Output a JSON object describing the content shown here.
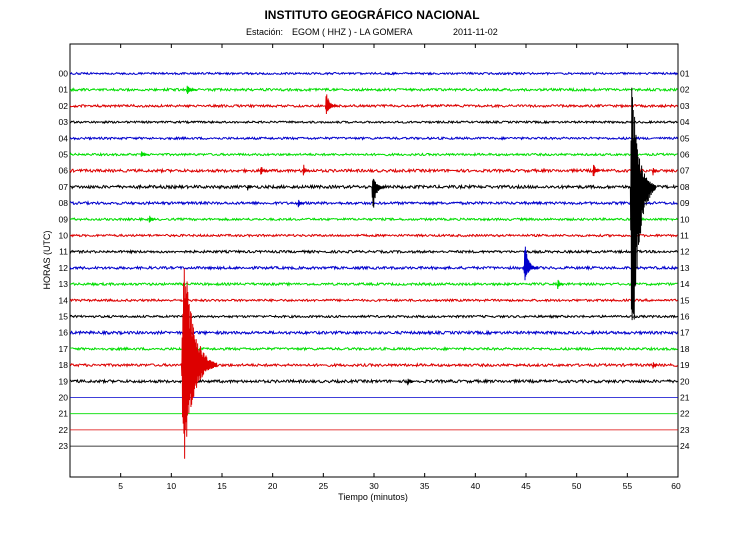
{
  "header": {
    "title": "INSTITUTO GEOGRÁFICO NACIONAL",
    "station_label": "Estación:",
    "station_value": "EGOM ( HHZ ) - LA GOMERA",
    "date": "2011-11-02"
  },
  "chart_data": {
    "type": "line",
    "title": "INSTITUTO GEOGRÁFICO NACIONAL",
    "subtitle": "Estación:  EGOM ( HHZ ) - LA GOMERA",
    "date": "2011-11-02",
    "xlabel": "Tiempo (minutos)",
    "ylabel": "HORAS (UTC)",
    "xlim": [
      0,
      60
    ],
    "x_ticks": [
      5,
      10,
      15,
      20,
      25,
      30,
      35,
      40,
      45,
      50,
      55,
      60
    ],
    "grid": false,
    "legend": "none",
    "colors": [
      "#0000cc",
      "#00dd00",
      "#dd0000",
      "#000000"
    ],
    "left_labels": [
      "00",
      "01",
      "02",
      "03",
      "04",
      "05",
      "06",
      "07",
      "08",
      "09",
      "10",
      "11",
      "12",
      "13",
      "14",
      "15",
      "16",
      "17",
      "18",
      "19",
      "20",
      "21",
      "22",
      "23"
    ],
    "right_labels": [
      "01",
      "02",
      "03",
      "04",
      "05",
      "06",
      "07",
      "08",
      "09",
      "10",
      "11",
      "12",
      "13",
      "14",
      "15",
      "16",
      "17",
      "18",
      "19",
      "20",
      "21",
      "22",
      "23",
      "24"
    ],
    "rows": [
      {
        "hour": "00",
        "color": "#0000cc",
        "noise": 1.0,
        "recorded_until_min": 60
      },
      {
        "hour": "01",
        "color": "#00dd00",
        "noise": 1.2,
        "recorded_until_min": 60
      },
      {
        "hour": "02",
        "color": "#dd0000",
        "noise": 1.2,
        "recorded_until_min": 60
      },
      {
        "hour": "03",
        "color": "#000000",
        "noise": 1.0,
        "recorded_until_min": 60
      },
      {
        "hour": "04",
        "color": "#0000cc",
        "noise": 1.1,
        "recorded_until_min": 60
      },
      {
        "hour": "05",
        "color": "#00dd00",
        "noise": 1.1,
        "recorded_until_min": 60
      },
      {
        "hour": "06",
        "color": "#dd0000",
        "noise": 1.4,
        "recorded_until_min": 60
      },
      {
        "hour": "07",
        "color": "#000000",
        "noise": 1.5,
        "recorded_until_min": 60
      },
      {
        "hour": "08",
        "color": "#0000cc",
        "noise": 1.3,
        "recorded_until_min": 60
      },
      {
        "hour": "09",
        "color": "#00dd00",
        "noise": 1.1,
        "recorded_until_min": 60
      },
      {
        "hour": "10",
        "color": "#dd0000",
        "noise": 1.1,
        "recorded_until_min": 60
      },
      {
        "hour": "11",
        "color": "#000000",
        "noise": 1.2,
        "recorded_until_min": 60
      },
      {
        "hour": "12",
        "color": "#0000cc",
        "noise": 1.3,
        "recorded_until_min": 60
      },
      {
        "hour": "13",
        "color": "#00dd00",
        "noise": 1.2,
        "recorded_until_min": 60
      },
      {
        "hour": "14",
        "color": "#dd0000",
        "noise": 1.1,
        "recorded_until_min": 60
      },
      {
        "hour": "15",
        "color": "#000000",
        "noise": 1.1,
        "recorded_until_min": 60
      },
      {
        "hour": "16",
        "color": "#0000cc",
        "noise": 1.4,
        "recorded_until_min": 60
      },
      {
        "hour": "17",
        "color": "#00dd00",
        "noise": 1.2,
        "recorded_until_min": 60
      },
      {
        "hour": "18",
        "color": "#dd0000",
        "noise": 1.3,
        "recorded_until_min": 60
      },
      {
        "hour": "19",
        "color": "#000000",
        "noise": 1.4,
        "recorded_until_min": 60
      },
      {
        "hour": "20",
        "color": "#0000cc",
        "noise": 0,
        "recorded_until_min": 0
      },
      {
        "hour": "21",
        "color": "#00dd00",
        "noise": 0,
        "recorded_until_min": 0
      },
      {
        "hour": "22",
        "color": "#dd0000",
        "noise": 0,
        "recorded_until_min": 0
      },
      {
        "hour": "23",
        "color": "#000000",
        "noise": 0,
        "recorded_until_min": 0
      }
    ],
    "events": [
      {
        "hour": "01",
        "minute": 11.5,
        "amplitude_up": 6,
        "amplitude_down": 6,
        "duration_min": 1.0
      },
      {
        "hour": "02",
        "minute": 25.2,
        "amplitude_up": 16,
        "amplitude_down": 12,
        "duration_min": 1.2
      },
      {
        "hour": "05",
        "minute": 7.0,
        "amplitude_up": 4,
        "amplitude_down": 4,
        "duration_min": 0.8
      },
      {
        "hour": "06",
        "minute": 18.8,
        "amplitude_up": 8,
        "amplitude_down": 6,
        "duration_min": 0.6
      },
      {
        "hour": "06",
        "minute": 23.0,
        "amplitude_up": 8,
        "amplitude_down": 6,
        "duration_min": 0.6
      },
      {
        "hour": "06",
        "minute": 51.6,
        "amplitude_up": 10,
        "amplitude_down": 8,
        "duration_min": 0.7
      },
      {
        "hour": "06",
        "minute": 57.5,
        "amplitude_up": 6,
        "amplitude_down": 5,
        "duration_min": 0.5
      },
      {
        "hour": "07",
        "minute": 17.5,
        "amplitude_up": 4,
        "amplitude_down": 4,
        "duration_min": 0.5
      },
      {
        "hour": "07",
        "minute": 29.8,
        "amplitude_up": 12,
        "amplitude_down": 30,
        "duration_min": 1.3
      },
      {
        "hour": "07",
        "minute": 55.3,
        "amplitude_up": 110,
        "amplitude_down": 215,
        "duration_min": 2.5
      },
      {
        "hour": "08",
        "minute": 22.5,
        "amplitude_up": 5,
        "amplitude_down": 5,
        "duration_min": 0.6
      },
      {
        "hour": "09",
        "minute": 7.8,
        "amplitude_up": 5,
        "amplitude_down": 5,
        "duration_min": 0.6
      },
      {
        "hour": "12",
        "minute": 44.8,
        "amplitude_up": 28,
        "amplitude_down": 14,
        "duration_min": 1.4
      },
      {
        "hour": "13",
        "minute": 48.1,
        "amplitude_up": 7,
        "amplitude_down": 6,
        "duration_min": 0.6
      },
      {
        "hour": "18",
        "minute": 11.0,
        "amplitude_up": 140,
        "amplitude_down": 112,
        "duration_min": 3.5
      },
      {
        "hour": "18",
        "minute": 57.5,
        "amplitude_up": 5,
        "amplitude_down": 5,
        "duration_min": 0.5
      },
      {
        "hour": "19",
        "minute": 33.3,
        "amplitude_up": 5,
        "amplitude_down": 5,
        "duration_min": 0.6
      }
    ]
  }
}
